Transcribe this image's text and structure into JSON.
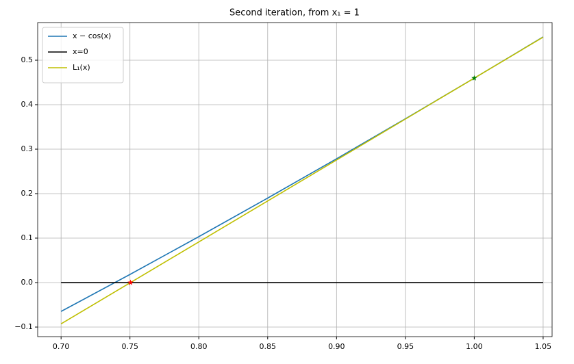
{
  "chart_data": {
    "type": "line",
    "title": "Second iteration, from x₁ = 1",
    "xlim": [
      0.683,
      1.0565
    ],
    "ylim": [
      -0.1215,
      0.5846
    ],
    "xticks": [
      {
        "value": 0.7,
        "label": "0.70"
      },
      {
        "value": 0.75,
        "label": "0.75"
      },
      {
        "value": 0.8,
        "label": "0.80"
      },
      {
        "value": 0.85,
        "label": "0.85"
      },
      {
        "value": 0.9,
        "label": "0.90"
      },
      {
        "value": 0.95,
        "label": "0.95"
      },
      {
        "value": 1.0,
        "label": "1.00"
      },
      {
        "value": 1.05,
        "label": "1.05"
      }
    ],
    "yticks": [
      {
        "value": -0.1,
        "label": "−0.1"
      },
      {
        "value": 0.0,
        "label": "0.0"
      },
      0.1,
      0.2,
      0.3,
      0.4,
      0.5
    ],
    "grid": true,
    "legend": "upper left",
    "series": [
      {
        "name": "x − cos(x)",
        "color": "#1f77b4",
        "x": [
          0.7,
          0.75,
          0.8,
          0.85,
          0.9,
          0.95,
          1.0,
          1.05
        ],
        "values": [
          -0.0648,
          0.0183,
          0.1033,
          0.19,
          0.2784,
          0.3683,
          0.4597,
          0.5524
        ]
      },
      {
        "name": "x=0",
        "color": "#000000",
        "x": [
          0.7,
          1.05
        ],
        "values": [
          0,
          0
        ]
      },
      {
        "name": "L₁(x)",
        "color": "#bfbf00",
        "x": [
          0.7,
          1.05
        ],
        "values": [
          -0.0927,
          0.5518
        ]
      },
      {
        "marker": "star",
        "color": "#008000",
        "x": [
          1.0
        ],
        "values": [
          0.4597
        ]
      },
      {
        "marker": "star",
        "color": "#ff0000",
        "x": [
          0.7504
        ],
        "values": [
          0
        ]
      }
    ]
  }
}
